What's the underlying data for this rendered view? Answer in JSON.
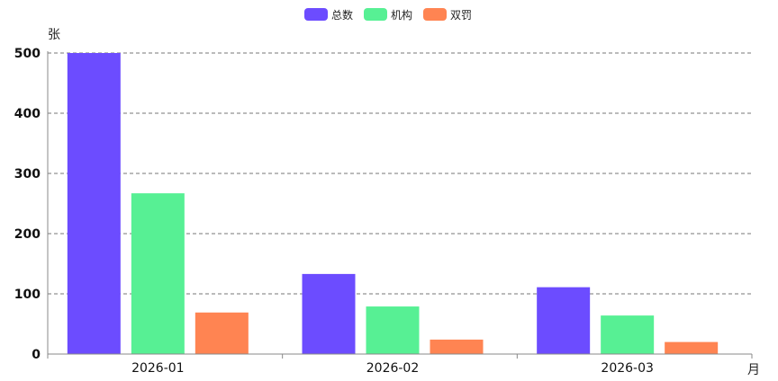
{
  "chart_data": {
    "type": "bar",
    "categories": [
      "2026-01",
      "2026-02",
      "2026-03"
    ],
    "series": [
      {
        "name": "总数",
        "color": "#6c4cff",
        "values": [
          500,
          133,
          111
        ]
      },
      {
        "name": "机构",
        "color": "#57f094",
        "values": [
          267,
          79,
          64
        ]
      },
      {
        "name": "双罚",
        "color": "#ff8452",
        "values": [
          69,
          24,
          20
        ]
      }
    ],
    "y_unit": "张",
    "x_unit": "月",
    "ylim": [
      0,
      500
    ],
    "y_ticks": [
      0,
      100,
      200,
      300,
      400,
      500
    ],
    "grid": "horizontal dashed",
    "legend_position": "top-center"
  }
}
